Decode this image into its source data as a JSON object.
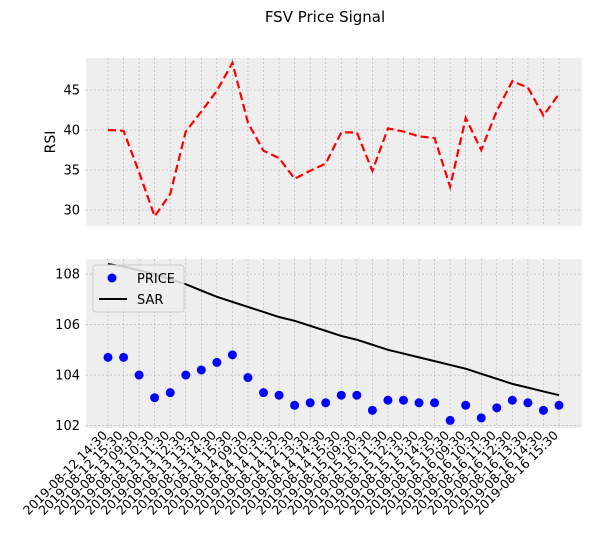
{
  "figure": {
    "title": "FSV Price Signal",
    "background": "#ffffff",
    "axes_background": "#eeeeee",
    "grid_color": "#b0b0b0"
  },
  "chart_data": [
    {
      "type": "line",
      "ylabel": "RSI",
      "ylim": [
        28,
        49
      ],
      "yticks": [
        30,
        35,
        40,
        45
      ],
      "grid": true,
      "x_tick_labels_visible": false,
      "series": [
        {
          "color": "#ff0000",
          "style": "dashed",
          "values": [
            40.0,
            39.9,
            34.7,
            29.2,
            32.0,
            39.8,
            42.3,
            44.9,
            48.4,
            40.9,
            37.4,
            36.5,
            33.9,
            34.9,
            35.8,
            39.7,
            39.7,
            34.9,
            40.2,
            39.8,
            39.2,
            39.0,
            32.9,
            41.5,
            37.5,
            42.4,
            46.1,
            45.3,
            41.8,
            44.5
          ]
        }
      ]
    },
    {
      "type": "scatter",
      "ylim": [
        101.9,
        108.6
      ],
      "yticks": [
        102,
        104,
        106,
        108
      ],
      "grid": true,
      "legend_position": "top-left",
      "series": [
        {
          "name": "PRICE",
          "kind": "scatter",
          "color": "#0000ff",
          "values": [
            104.7,
            104.7,
            104.0,
            103.1,
            103.3,
            104.0,
            104.2,
            104.5,
            104.8,
            103.9,
            103.3,
            103.2,
            102.8,
            102.9,
            102.9,
            103.2,
            103.2,
            102.6,
            103.0,
            103.0,
            102.9,
            102.9,
            102.2,
            102.8,
            102.3,
            102.7,
            103.0,
            102.9,
            102.6,
            102.8
          ]
        },
        {
          "name": "SAR",
          "kind": "line",
          "color": "#000000",
          "values": [
            108.4,
            108.3,
            108.15,
            108.0,
            107.8,
            107.6,
            107.35,
            107.1,
            106.9,
            106.7,
            106.5,
            106.3,
            106.15,
            105.95,
            105.75,
            105.55,
            105.4,
            105.2,
            105.0,
            104.85,
            104.7,
            104.55,
            104.4,
            104.25,
            104.05,
            103.85,
            103.65,
            103.5,
            103.35,
            103.2
          ]
        }
      ]
    }
  ],
  "x_tick_labels": [
    "2019-08-12 14:30",
    "2019-08-12 15:30",
    "2019-08-13 09:30",
    "2019-08-13 10:30",
    "2019-08-13 11:30",
    "2019-08-13 12:30",
    "2019-08-13 13:30",
    "2019-08-13 14:30",
    "2019-08-13 15:30",
    "2019-08-14 09:30",
    "2019-08-14 10:30",
    "2019-08-14 11:30",
    "2019-08-14 12:30",
    "2019-08-14 13:30",
    "2019-08-14 14:30",
    "2019-08-14 15:30",
    "2019-08-15 09:30",
    "2019-08-15 10:30",
    "2019-08-15 11:30",
    "2019-08-15 12:30",
    "2019-08-15 13:30",
    "2019-08-15 14:30",
    "2019-08-15 15:30",
    "2019-08-16 09:30",
    "2019-08-16 10:30",
    "2019-08-16 11:30",
    "2019-08-16 12:30",
    "2019-08-16 13:30",
    "2019-08-16 14:30",
    "2019-08-16 15:30"
  ]
}
